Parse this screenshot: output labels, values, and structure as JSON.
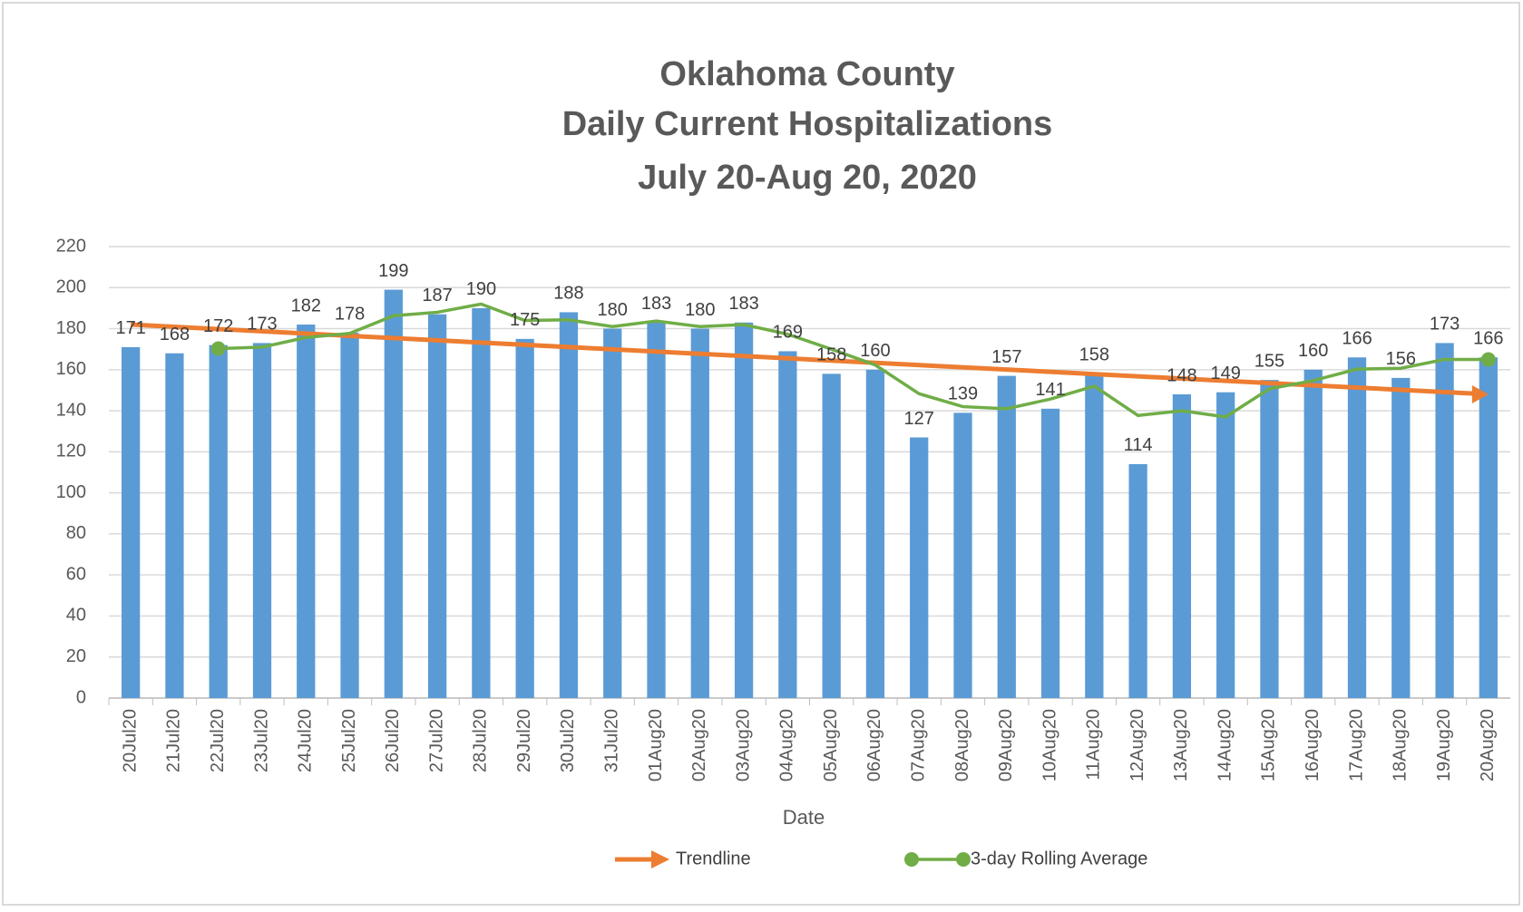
{
  "chart_data": {
    "type": "bar",
    "title": [
      "Oklahoma County",
      "Daily Current Hospitalizations",
      "July 20-Aug 20, 2020"
    ],
    "x_label": "Date",
    "categories": [
      "20Jul20",
      "21Jul20",
      "22Jul20",
      "23Jul20",
      "24Jul20",
      "25Jul20",
      "26Jul20",
      "27Jul20",
      "28Jul20",
      "29Jul20",
      "30Jul20",
      "31Jul20",
      "01Aug20",
      "02Aug20",
      "03Aug20",
      "04Aug20",
      "05Aug20",
      "06Aug20",
      "07Aug20",
      "08Aug20",
      "09Aug20",
      "10Aug20",
      "11Aug20",
      "12Aug20",
      "13Aug20",
      "14Aug20",
      "15Aug20",
      "16Aug20",
      "17Aug20",
      "18Aug20",
      "19Aug20",
      "20Aug20"
    ],
    "values": [
      171,
      168,
      172,
      173,
      182,
      178,
      199,
      187,
      190,
      175,
      188,
      180,
      183,
      180,
      183,
      169,
      158,
      160,
      127,
      139,
      157,
      141,
      158,
      114,
      148,
      149,
      155,
      160,
      166,
      156,
      173,
      166
    ],
    "color": "#5b9bd5",
    "line": {
      "name": "3-day Rolling Average",
      "color": "#70ad47",
      "values": [
        null,
        null,
        170.3,
        171,
        175.7,
        177.7,
        186.3,
        188,
        192,
        184,
        184.3,
        181,
        183.7,
        181,
        182,
        177.3,
        170,
        162.3,
        148.3,
        142,
        141,
        145.7,
        152,
        137.7,
        140,
        137,
        150.7,
        154.7,
        160.3,
        160.7,
        165,
        165
      ]
    },
    "trendline": {
      "name": "Trendline",
      "color": "#ed7d31",
      "values": [
        182,
        148
      ]
    },
    "ylim": [
      0,
      220
    ],
    "yticks": [
      0,
      20,
      40,
      60,
      80,
      100,
      120,
      140,
      160,
      180,
      200,
      220
    ],
    "grid": true
  }
}
